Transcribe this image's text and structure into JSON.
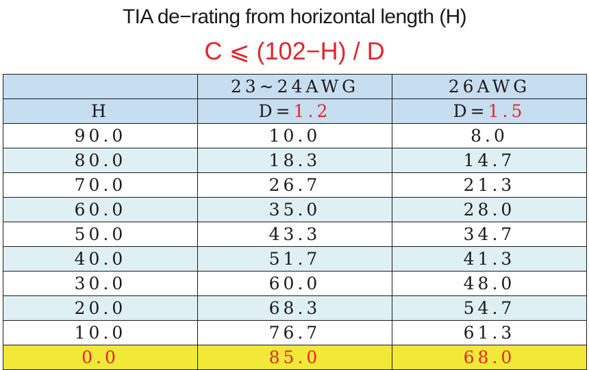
{
  "title": "TIA de−rating from horizontal length (H)",
  "formula": "C ⩽ (102−H) / D",
  "table": {
    "header_row_1": [
      "",
      "23~24AWG",
      "26AWG"
    ],
    "header_row_2": {
      "col1": "H",
      "col2_prefix": "D=",
      "col2_value": "1.2",
      "col3_prefix": "D=",
      "col3_value": "1.5"
    },
    "rows": [
      {
        "h": "90.0",
        "awg24": "10.0",
        "awg26": "8.0"
      },
      {
        "h": "80.0",
        "awg24": "18.3",
        "awg26": "14.7"
      },
      {
        "h": "70.0",
        "awg24": "26.7",
        "awg26": "21.3"
      },
      {
        "h": "60.0",
        "awg24": "35.0",
        "awg26": "28.0"
      },
      {
        "h": "50.0",
        "awg24": "43.3",
        "awg26": "34.7"
      },
      {
        "h": "40.0",
        "awg24": "51.7",
        "awg26": "41.3"
      },
      {
        "h": "30.0",
        "awg24": "60.0",
        "awg26": "48.0"
      },
      {
        "h": "20.0",
        "awg24": "68.3",
        "awg26": "54.7"
      },
      {
        "h": "10.0",
        "awg24": "76.7",
        "awg26": "61.3"
      },
      {
        "h": "0.0",
        "awg24": "85.0",
        "awg26": "68.0"
      }
    ]
  },
  "colors": {
    "header_bg": "#c7ddf0",
    "row_tint_bg": "#dff0f5",
    "highlight_bg": "#f1e837",
    "accent_red": "#e1262d"
  }
}
